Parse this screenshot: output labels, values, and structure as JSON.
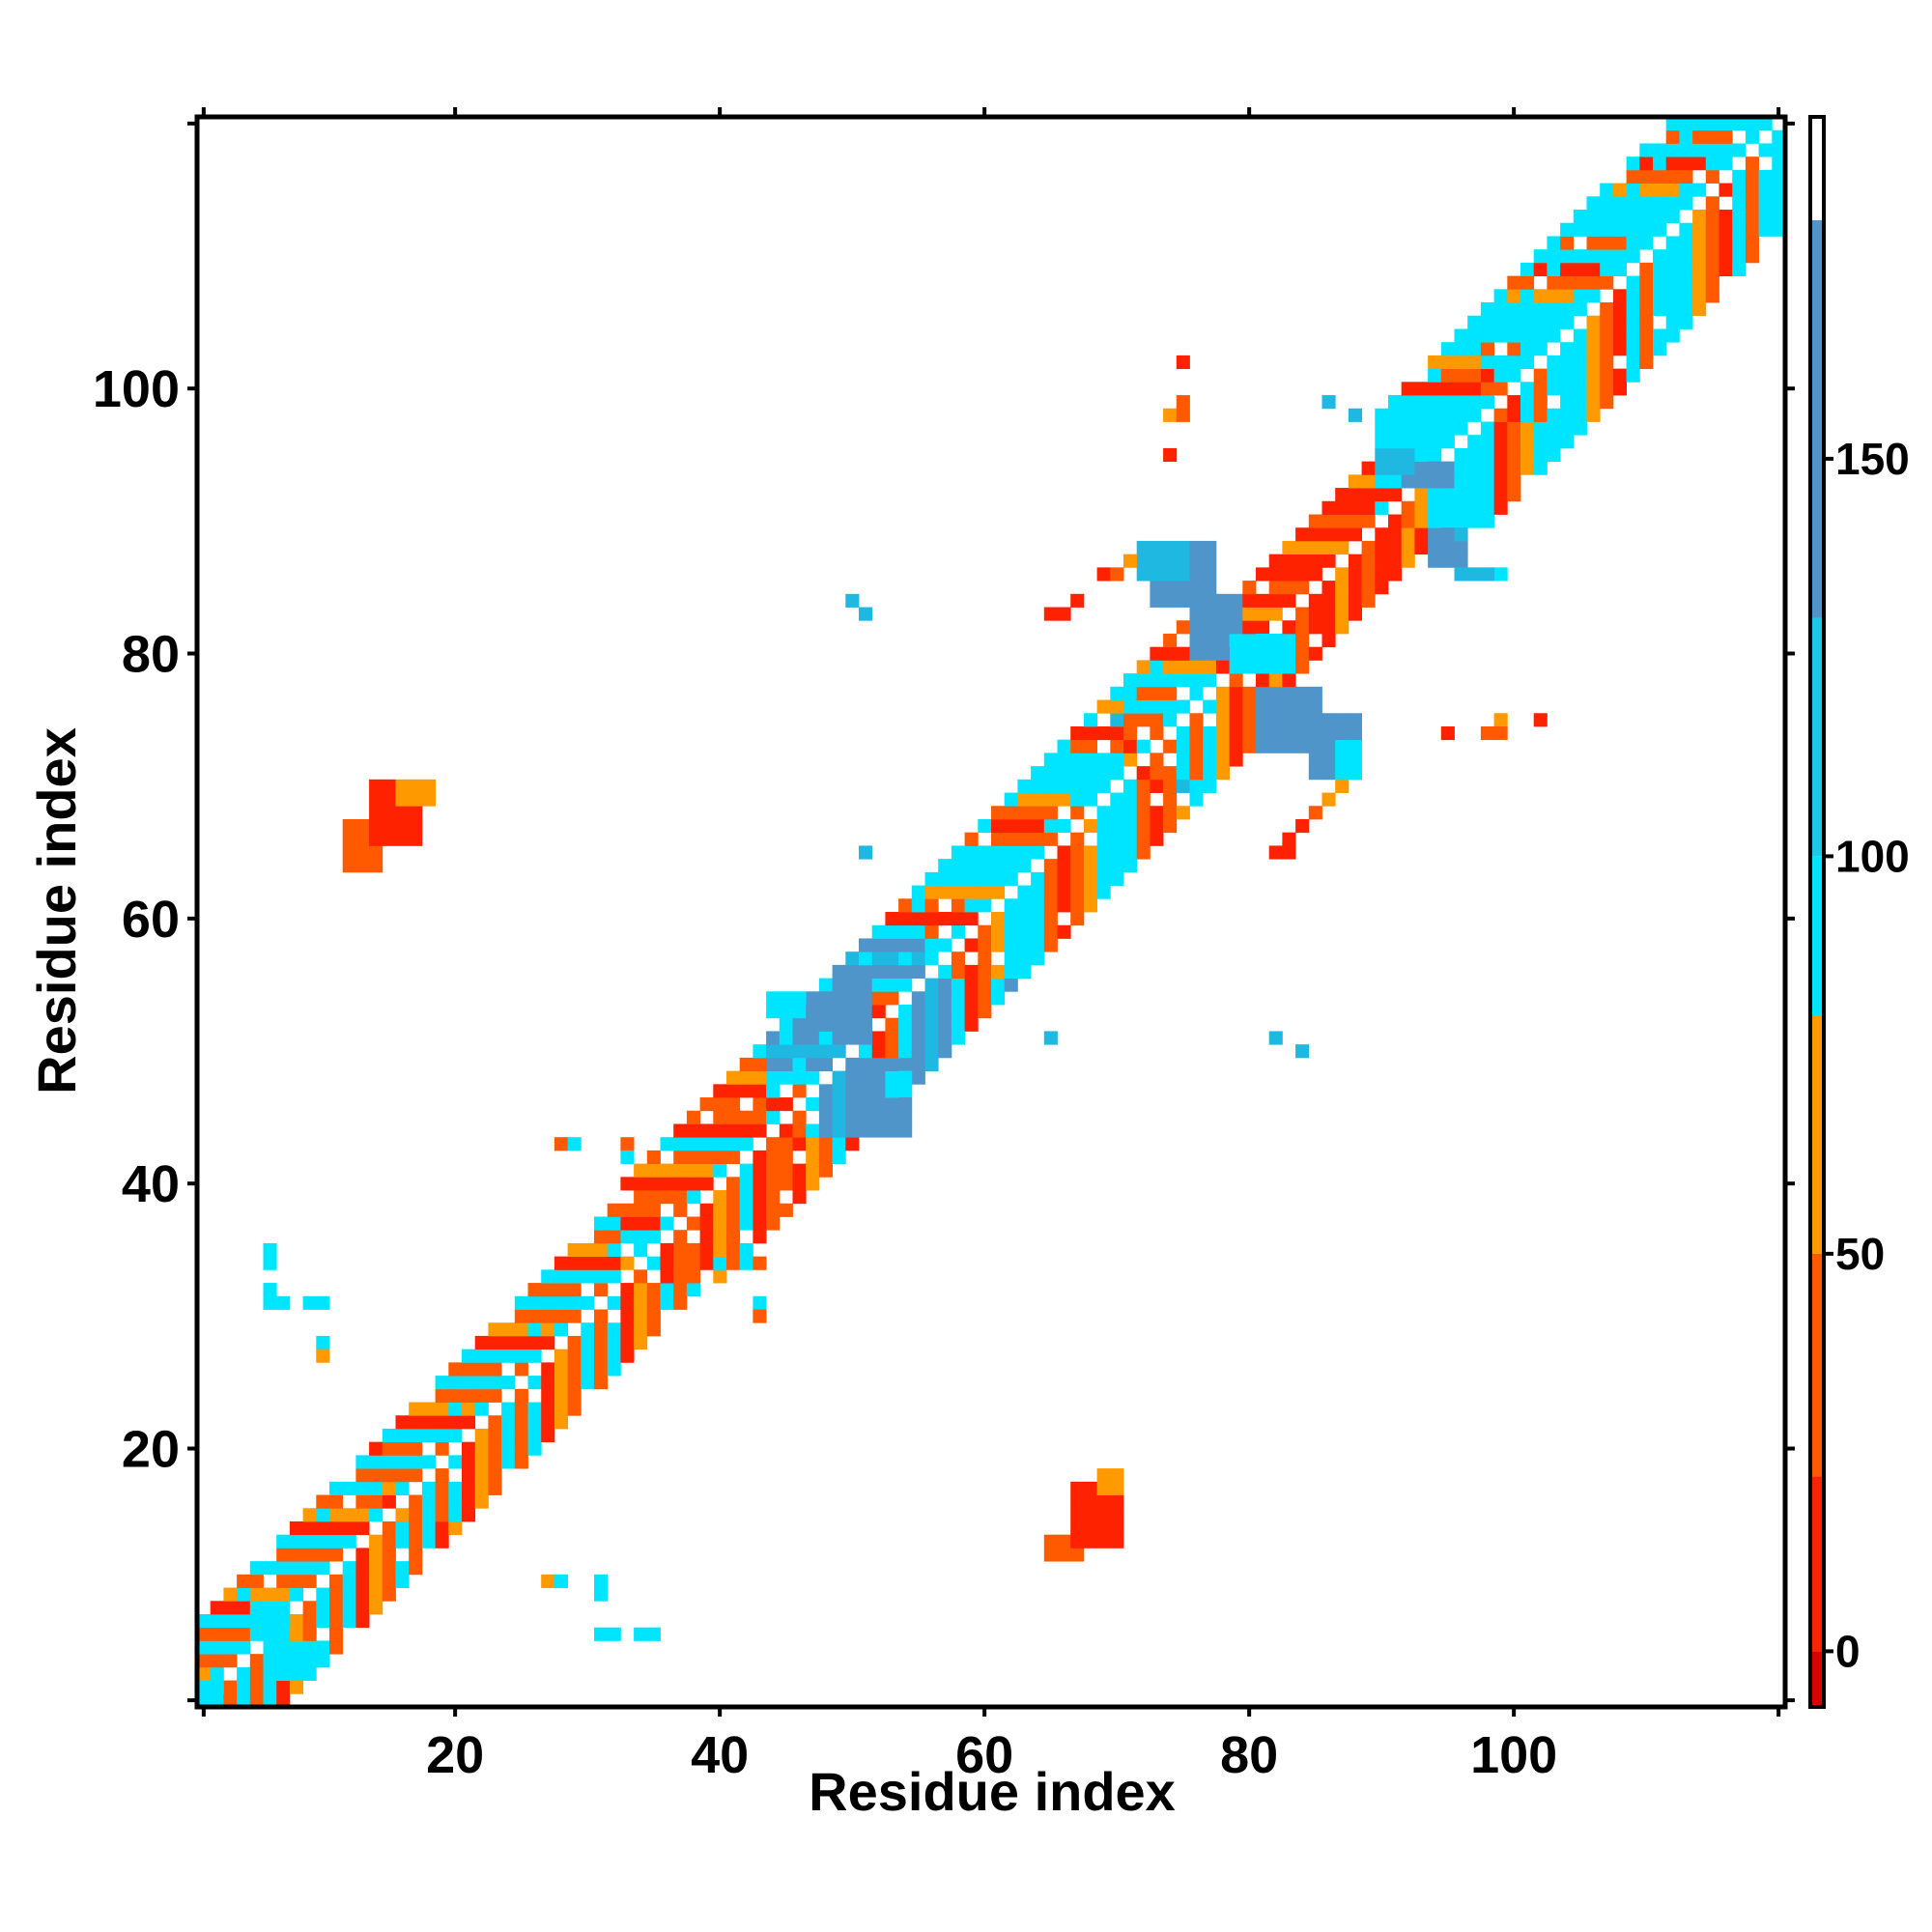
{
  "chart_data": {
    "type": "heatmap",
    "xlabel": "Residue index",
    "ylabel": "Residue index",
    "xlim": [
      1,
      120
    ],
    "ylim": [
      1,
      120
    ],
    "x_ticks": [
      20,
      40,
      60,
      80,
      100
    ],
    "y_ticks": [
      20,
      40,
      60,
      80,
      100
    ],
    "colorbar": {
      "ticks": [
        0,
        50,
        100,
        150
      ],
      "range": [
        -7,
        193
      ],
      "bands": [
        {
          "from": -7,
          "to": 0,
          "color": "#dd0000"
        },
        {
          "from": 0,
          "to": 22,
          "color": "#ff2200"
        },
        {
          "from": 22,
          "to": 50,
          "color": "#ff5a00"
        },
        {
          "from": 50,
          "to": 80,
          "color": "#ff9900"
        },
        {
          "from": 80,
          "to": 100,
          "color": "#00e5ff"
        },
        {
          "from": 100,
          "to": 130,
          "color": "#1fc6e6"
        },
        {
          "from": 130,
          "to": 180,
          "color": "#5095c9"
        },
        {
          "from": 180,
          "to": 193,
          "color": "#ffffff"
        }
      ]
    },
    "classes": {
      "r": "#ff2200",
      "R": "#dd0000",
      "o": "#ff5a00",
      "y": "#ff9900",
      "c": "#00e5ff",
      "s": "#1fb8e0",
      "b": "#5095c9"
    },
    "diagonal_pattern": [
      [
        "c",
        "r",
        "y",
        "o",
        "c",
        "o"
      ],
      [
        "c",
        "o",
        "c",
        "r",
        "y",
        "o"
      ],
      [
        "c",
        "r",
        "o",
        "o",
        "r",
        "y",
        "o"
      ],
      [
        "r",
        "r",
        "y",
        "r",
        "o"
      ],
      [
        "c",
        "y",
        "r",
        "o",
        "o",
        "c",
        "o"
      ],
      [
        "c",
        "c",
        "o",
        "r",
        "o",
        "y",
        "c"
      ],
      [
        "c",
        "c",
        "y",
        "o",
        "r",
        "c",
        "o",
        "c"
      ],
      [
        "s",
        "b",
        "c",
        "r",
        "o",
        "c",
        "b"
      ],
      [
        "c",
        "c",
        "c",
        "r",
        "o",
        "y",
        "c",
        "c"
      ]
    ],
    "diagonal_regions": [
      {
        "from": 1,
        "to": 15,
        "pattern": 0
      },
      {
        "from": 15,
        "to": 33,
        "pattern": 1
      },
      {
        "from": 33,
        "to": 44,
        "pattern": 2
      },
      {
        "from": 44,
        "to": 56,
        "pattern": 7
      },
      {
        "from": 56,
        "to": 71,
        "pattern": 5
      },
      {
        "from": 71,
        "to": 78,
        "pattern": 4
      },
      {
        "from": 78,
        "to": 90,
        "pattern": 3
      },
      {
        "from": 90,
        "to": 98,
        "pattern": 8
      },
      {
        "from": 98,
        "to": 120,
        "pattern": 6
      }
    ],
    "blocks": [
      {
        "x": [
          12,
          14
        ],
        "y": [
          64,
          67
        ],
        "c": "o"
      },
      {
        "x": [
          14,
          17
        ],
        "y": [
          66,
          70
        ],
        "c": "r"
      },
      {
        "x": [
          16,
          18
        ],
        "y": [
          69,
          70
        ],
        "c": "y"
      },
      {
        "x": [
          65,
          67
        ],
        "y": [
          12,
          13
        ],
        "c": "o"
      },
      {
        "x": [
          67,
          70
        ],
        "y": [
          13,
          17
        ],
        "c": "r"
      },
      {
        "x": [
          69,
          70
        ],
        "y": [
          17,
          18
        ],
        "c": "y"
      },
      {
        "x": [
          73,
          77
        ],
        "y": [
          84,
          88
        ],
        "c": "b"
      },
      {
        "x": [
          76,
          79
        ],
        "y": [
          80,
          84
        ],
        "c": "b"
      },
      {
        "x": [
          72,
          75
        ],
        "y": [
          86,
          88
        ],
        "c": "s"
      },
      {
        "x": [
          81,
          85
        ],
        "y": [
          73,
          77
        ],
        "c": "b"
      },
      {
        "x": [
          85,
          88
        ],
        "y": [
          71,
          75
        ],
        "c": "b"
      },
      {
        "x": [
          87,
          88
        ],
        "y": [
          71,
          73
        ],
        "c": "c"
      },
      {
        "x": [
          79,
          83
        ],
        "y": [
          79,
          81
        ],
        "c": "c"
      },
      {
        "x": [
          92,
          95
        ],
        "y": [
          93,
          94
        ],
        "c": "b"
      },
      {
        "x": [
          94,
          96
        ],
        "y": [
          87,
          89
        ],
        "c": "b"
      },
      {
        "x": [
          90,
          92
        ],
        "y": [
          94,
          95
        ],
        "c": "s"
      },
      {
        "x": [
          46,
          48
        ],
        "y": [
          52,
          54
        ],
        "c": "b"
      },
      {
        "x": [
          49,
          51
        ],
        "y": [
          51,
          55
        ],
        "c": "b"
      },
      {
        "x": [
          51,
          54
        ],
        "y": [
          44,
          49
        ],
        "c": "b"
      },
      {
        "x": [
          53,
          54
        ],
        "y": [
          47,
          48
        ],
        "c": "c"
      },
      {
        "x": [
          44,
          46
        ],
        "y": [
          53,
          54
        ],
        "c": "c"
      },
      {
        "x": [
          5,
          7
        ],
        "y": [
          6,
          8
        ],
        "c": "c"
      },
      {
        "x": [
          7,
          9
        ],
        "y": [
          3,
          5
        ],
        "c": "c"
      },
      {
        "x": [
          1,
          2
        ],
        "y": [
          1,
          2
        ],
        "c": "c"
      }
    ],
    "points": [
      [
        6,
        31,
        "c"
      ],
      [
        6,
        32,
        "c"
      ],
      [
        6,
        34,
        "c"
      ],
      [
        6,
        35,
        "c"
      ],
      [
        7,
        31,
        "c"
      ],
      [
        9,
        31,
        "c"
      ],
      [
        10,
        31,
        "c"
      ],
      [
        10,
        28,
        "c"
      ],
      [
        10,
        27,
        "y"
      ],
      [
        27,
        10,
        "y"
      ],
      [
        28,
        10,
        "c"
      ],
      [
        31,
        10,
        "c"
      ],
      [
        31,
        9,
        "c"
      ],
      [
        31,
        6,
        "c"
      ],
      [
        32,
        6,
        "c"
      ],
      [
        34,
        6,
        "c"
      ],
      [
        35,
        6,
        "c"
      ],
      [
        28,
        43,
        "o"
      ],
      [
        29,
        43,
        "c"
      ],
      [
        33,
        43,
        "o"
      ],
      [
        33,
        42,
        "c"
      ],
      [
        40,
        34,
        "c"
      ],
      [
        42,
        34,
        "c"
      ],
      [
        43,
        34,
        "o"
      ],
      [
        43,
        31,
        "c"
      ],
      [
        43,
        30,
        "o"
      ],
      [
        50,
        84,
        "s"
      ],
      [
        51,
        83,
        "s"
      ],
      [
        51,
        65,
        "s"
      ],
      [
        65,
        51,
        "s"
      ],
      [
        65,
        83,
        "r"
      ],
      [
        66,
        83,
        "r"
      ],
      [
        67,
        84,
        "r"
      ],
      [
        69,
        86,
        "r"
      ],
      [
        70,
        86,
        "o"
      ],
      [
        71,
        87,
        "y"
      ],
      [
        82,
        65,
        "r"
      ],
      [
        83,
        65,
        "r"
      ],
      [
        83,
        66,
        "r"
      ],
      [
        84,
        67,
        "r"
      ],
      [
        85,
        68,
        "o"
      ],
      [
        86,
        69,
        "y"
      ],
      [
        87,
        70,
        "y"
      ],
      [
        74,
        95,
        "r"
      ],
      [
        74,
        98,
        "y"
      ],
      [
        75,
        99,
        "o"
      ],
      [
        75,
        98,
        "o"
      ],
      [
        75,
        102,
        "r"
      ],
      [
        95,
        74,
        "r"
      ],
      [
        98,
        74,
        "o"
      ],
      [
        99,
        75,
        "y"
      ],
      [
        99,
        74,
        "o"
      ],
      [
        102,
        75,
        "r"
      ],
      [
        86,
        99,
        "s"
      ],
      [
        88,
        98,
        "s"
      ],
      [
        96,
        89,
        "s"
      ],
      [
        96,
        86,
        "s"
      ],
      [
        97,
        86,
        "s"
      ],
      [
        99,
        86,
        "c"
      ],
      [
        98,
        86,
        "s"
      ],
      [
        65,
        51,
        "s"
      ],
      [
        82,
        51,
        "s"
      ],
      [
        84,
        50,
        "s"
      ],
      [
        70,
        75,
        "s"
      ],
      [
        75,
        70,
        "s"
      ]
    ]
  }
}
